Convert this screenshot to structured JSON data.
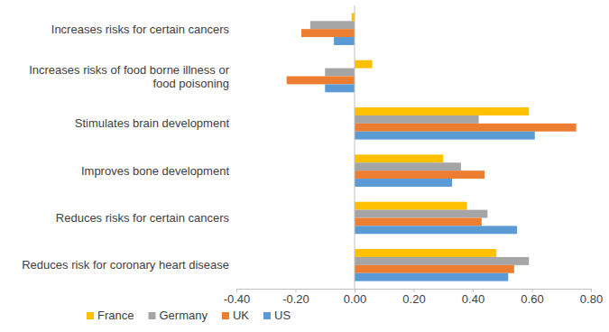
{
  "chart_data": {
    "type": "bar",
    "orientation": "horizontal",
    "categories": [
      "Increases risks for certain cancers",
      "Increases risks of food borne illness or food poisoning",
      "Stimulates brain development",
      "Improves bone development",
      "Reduces risks for certain cancers",
      "Reduces risk for coronary heart disease"
    ],
    "series": [
      {
        "name": "France",
        "color": "#ffc000",
        "values": [
          -0.01,
          0.06,
          0.59,
          0.3,
          0.38,
          0.48
        ]
      },
      {
        "name": "Germany",
        "color": "#a5a5a5",
        "values": [
          -0.15,
          -0.1,
          0.42,
          0.36,
          0.45,
          0.59
        ]
      },
      {
        "name": "UK",
        "color": "#ed7d31",
        "values": [
          -0.18,
          -0.23,
          0.75,
          0.44,
          0.43,
          0.54
        ]
      },
      {
        "name": "US",
        "color": "#5b9bd5",
        "values": [
          -0.07,
          -0.1,
          0.61,
          0.33,
          0.55,
          0.52
        ]
      }
    ],
    "xlim": [
      -0.4,
      0.8
    ],
    "xticks": [
      {
        "value": -0.4,
        "label": "-0.40"
      },
      {
        "value": -0.2,
        "label": "-0.20"
      },
      {
        "value": 0,
        "label": "0.00"
      },
      {
        "value": 0.2,
        "label": "0.20"
      },
      {
        "value": 0.4,
        "label": "0.40"
      },
      {
        "value": 0.6,
        "label": "0.60"
      },
      {
        "value": 0.8,
        "label": "0.80"
      }
    ],
    "grid": false,
    "legend": "bottom-left"
  }
}
